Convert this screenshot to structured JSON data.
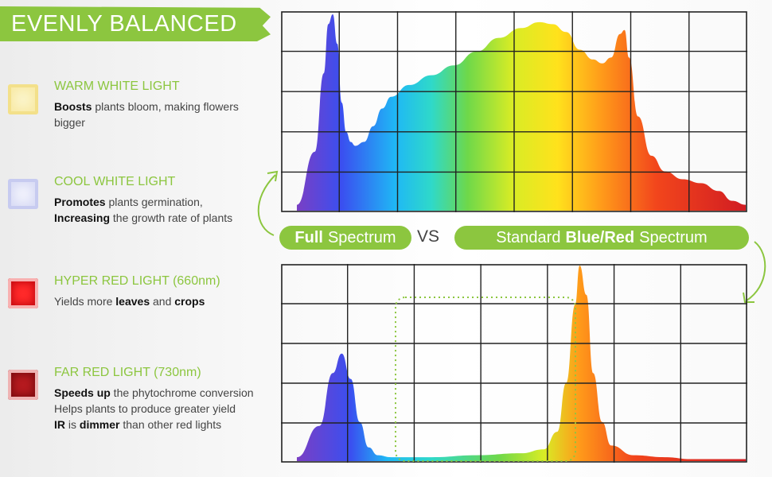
{
  "header": {
    "title": "EVENLY BALANCED"
  },
  "lights": [
    {
      "title": "WARM WHITE LIGHT",
      "lines": [
        [
          {
            "b": "Boosts"
          },
          {
            "t": " plants bloom, making flowers"
          }
        ],
        [
          {
            "t": "bigger"
          }
        ]
      ],
      "icon": "warm-white-swatch-icon"
    },
    {
      "title": "COOL WHITE LIGHT",
      "lines": [
        [
          {
            "b": "Promotes"
          },
          {
            "t": " plants germination,"
          }
        ],
        [
          {
            "b": "Increasing"
          },
          {
            "t": " the growth rate of plants"
          }
        ]
      ],
      "icon": "cool-white-swatch-icon"
    },
    {
      "title": "HYPER RED LIGHT (660nm)",
      "lines": [
        [
          {
            "t": "Yields more "
          },
          {
            "b": "leaves"
          },
          {
            "t": " and "
          },
          {
            "b": "crops"
          }
        ]
      ],
      "icon": "hyper-red-swatch-icon"
    },
    {
      "title": "FAR RED LIGHT (730nm)",
      "lines": [
        [
          {
            "b": "Speeds up"
          },
          {
            "t": " the phytochrome conversion"
          }
        ],
        [
          {
            "t": "Helps plants to produce greater yield"
          }
        ],
        [
          {
            "b": "IR"
          },
          {
            "t": " is "
          },
          {
            "b": "dimmer"
          },
          {
            "t": " than other red lights"
          }
        ]
      ],
      "icon": "far-red-swatch-icon"
    }
  ],
  "labels": {
    "full_bold": "Full",
    "full_rest": "Spectrum",
    "vs": "VS",
    "std_pre": "Standard",
    "std_bold": "Blue/Red",
    "std_post": "Spectrum"
  },
  "colors": {
    "accent": "#8cc63f",
    "warm_white": "#f7e89a",
    "cool_white": "#c9cdf0",
    "hyper_red": "#e8141c",
    "far_red": "#a8141a"
  },
  "chart_data": [
    {
      "type": "area",
      "name_label": "Full Spectrum",
      "x": [
        0,
        0.04,
        0.06,
        0.07,
        0.08,
        0.09,
        0.1,
        0.11,
        0.12,
        0.13,
        0.15,
        0.17,
        0.19,
        0.21,
        0.25,
        0.3,
        0.35,
        0.4,
        0.45,
        0.5,
        0.54,
        0.57,
        0.6,
        0.63,
        0.66,
        0.68,
        0.7,
        0.72,
        0.73,
        0.74,
        0.76,
        0.79,
        0.82,
        0.86,
        0.9,
        0.94,
        0.97,
        1.0
      ],
      "y": [
        0.03,
        0.3,
        0.7,
        0.95,
        1.0,
        0.85,
        0.55,
        0.4,
        0.35,
        0.33,
        0.35,
        0.43,
        0.52,
        0.58,
        0.64,
        0.69,
        0.74,
        0.81,
        0.88,
        0.93,
        0.96,
        0.95,
        0.91,
        0.82,
        0.77,
        0.75,
        0.78,
        0.9,
        0.92,
        0.78,
        0.48,
        0.28,
        0.2,
        0.16,
        0.14,
        0.1,
        0.05,
        0.03
      ],
      "grid": true,
      "cols": 8,
      "rows": 5
    },
    {
      "type": "area",
      "name_label": "Standard Blue/Red Spectrum",
      "x": [
        0,
        0.05,
        0.08,
        0.1,
        0.12,
        0.14,
        0.16,
        0.18,
        0.21,
        0.25,
        0.3,
        0.4,
        0.5,
        0.55,
        0.58,
        0.6,
        0.62,
        0.63,
        0.645,
        0.66,
        0.68,
        0.7,
        0.75,
        0.82,
        0.88,
        1.0
      ],
      "y": [
        0.02,
        0.18,
        0.45,
        0.55,
        0.42,
        0.2,
        0.07,
        0.03,
        0.02,
        0.02,
        0.02,
        0.03,
        0.04,
        0.06,
        0.15,
        0.4,
        0.8,
        1.0,
        0.85,
        0.45,
        0.2,
        0.08,
        0.03,
        0.02,
        0.01,
        0.01
      ],
      "grid": true,
      "cols": 7,
      "rows": 5
    }
  ]
}
